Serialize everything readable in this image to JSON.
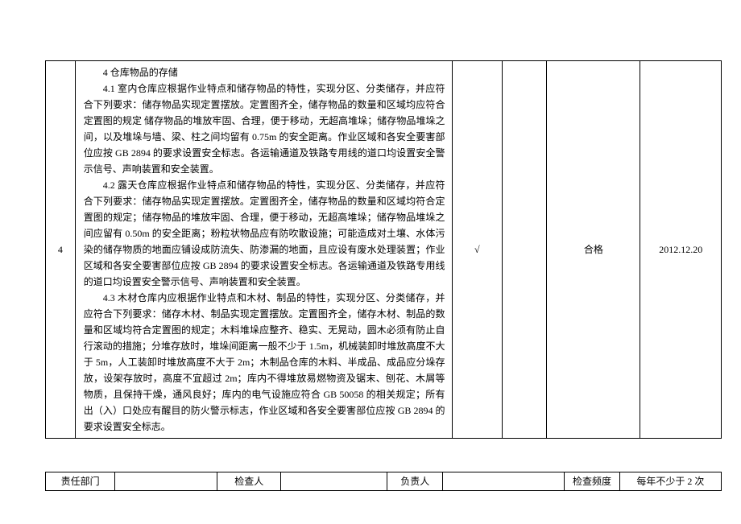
{
  "row": {
    "index": "4",
    "check1": "√",
    "check2": "",
    "result": "合格",
    "date": "2012.12.20",
    "content": {
      "p1": "4 仓库物品的存储",
      "p2": "4.1 室内仓库应根据作业特点和储存物品的特性，实现分区、分类储存，并应符合下列要求：储存物品实现定置摆放。定置图齐全，储存物品的数量和区域均应符合定置图的规定 储存物品的堆放牢固、合理，便于移动，无超高堆垛；储存物品堆垛之间，以及堆垛与墙、梁、柱之间均留有 0.75m 的安全距离。作业区域和各安全要害部位应按 GB 2894 的要求设置安全标志。各运输通道及铁路专用线的道口均设置安全警示信号、声响装置和安全装置。",
      "p3": "4.2 露天仓库应根据作业特点和储存物品的特性，实现分区、分类储存，并应符合下列要求：储存物品实现定置摆放。定置图齐全，储存物品的数量和区域均符合定置图的规定；储存物品的堆放牢固、合理，便于移动，无超高堆垛；储存物品堆垛之间应留有 0.50m 的安全距离；粉粒状物品应有防吹散设施；可能造成对土壤、水体污染的储存物质的地面应铺设成防流失、防渗漏的地面，且应设有废水处理装置；作业区域和各安全要害部位应按 GB 2894 的要求设置安全标志。各运输通道及铁路专用线的道口均设置安全警示信号、声响装置和安全装置。",
      "p4": "4.3 木材仓库内应根据作业特点和木材、制品的特性，实现分区、分类储存，并应符合下列要求：储存木材、制品实现定置摆放。定置图齐全，储存木材、制品的数量和区域均符合定置图的规定；木料堆垛应整齐、稳实、无晃动，圆木必须有防止自行滚动的措施；分堆存放时，堆垛间距离一般不少于 1.5m，机械装卸时堆放高度不大于 5m，人工装卸时堆放高度不大于 2m；木制品仓库的木料、半成品、成品应分垛存放，设架存放时，高度不宜超过 2m；库内不得堆放易燃物资及锯末、刨花、木屑等物质，且保持干燥，通风良好；库内的电气设施应符合 GB 50058 的相关规定；所有出（入）口处应有醒目的防火警示标志，作业区域和各安全要害部位应按 GB 2894 的要求设置安全标志。"
    }
  },
  "footer": {
    "label1": "责任部门",
    "value1": "",
    "label2": "检查人",
    "value2": "",
    "label3": "负责人",
    "value3": "",
    "label4": "检查频度",
    "value4": "",
    "label5": "",
    "value5": "每年不少于 2 次"
  }
}
